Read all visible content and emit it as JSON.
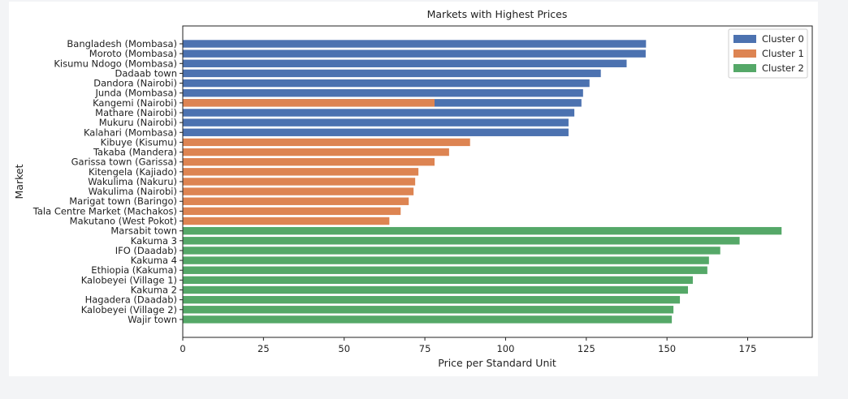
{
  "chart_data": {
    "type": "bar",
    "orientation": "horizontal",
    "title": "Markets with Highest Prices",
    "xlabel": "Price per Standard Unit",
    "ylabel": "Market",
    "xlim": [
      0,
      195
    ],
    "xticks": [
      0,
      25,
      50,
      75,
      100,
      125,
      150,
      175
    ],
    "grid": false,
    "legend_position": "top-right",
    "legend": [
      {
        "name": "Cluster 0",
        "color": "#4c72b0"
      },
      {
        "name": "Cluster 1",
        "color": "#dd8452"
      },
      {
        "name": "Cluster 2",
        "color": "#55a868"
      }
    ],
    "bars": [
      {
        "label": "Bangladesh (Mombasa)",
        "value": 143.5,
        "cluster": 0
      },
      {
        "label": "Moroto (Mombasa)",
        "value": 143.4,
        "cluster": 0
      },
      {
        "label": "Kisumu Ndogo (Mombasa)",
        "value": 137.5,
        "cluster": 0
      },
      {
        "label": "Dadaab town",
        "value": 129.5,
        "cluster": 0
      },
      {
        "label": "Dandora (Nairobi)",
        "value": 126.0,
        "cluster": 0
      },
      {
        "label": "Junda (Mombasa)",
        "value": 124.0,
        "cluster": 0
      },
      {
        "label": "Kangemi (Nairobi)",
        "value": 123.5,
        "cluster": 0
      },
      {
        "label": "Kangemi (Nairobi)",
        "value": 78.0,
        "cluster": 1
      },
      {
        "label": "Mathare (Nairobi)",
        "value": 121.3,
        "cluster": 0
      },
      {
        "label": "Mukuru (Nairobi)",
        "value": 119.5,
        "cluster": 0
      },
      {
        "label": "Kalahari (Mombasa)",
        "value": 119.5,
        "cluster": 0
      },
      {
        "label": "Kibuye (Kisumu)",
        "value": 89.0,
        "cluster": 1
      },
      {
        "label": "Takaba (Mandera)",
        "value": 82.5,
        "cluster": 1
      },
      {
        "label": "Garissa town (Garissa)",
        "value": 78.0,
        "cluster": 1
      },
      {
        "label": "Kitengela (Kajiado)",
        "value": 73.0,
        "cluster": 1
      },
      {
        "label": "Wakulima (Nakuru)",
        "value": 72.0,
        "cluster": 1
      },
      {
        "label": "Wakulima (Nairobi)",
        "value": 71.5,
        "cluster": 1
      },
      {
        "label": "Marigat town (Baringo)",
        "value": 70.0,
        "cluster": 1
      },
      {
        "label": "Tala Centre Market (Machakos)",
        "value": 67.5,
        "cluster": 1
      },
      {
        "label": "Makutano (West Pokot)",
        "value": 64.0,
        "cluster": 1
      },
      {
        "label": "Marsabit town",
        "value": 185.5,
        "cluster": 2
      },
      {
        "label": "Kakuma 3",
        "value": 172.5,
        "cluster": 2
      },
      {
        "label": "IFO (Daadab)",
        "value": 166.5,
        "cluster": 2
      },
      {
        "label": "Kakuma 4",
        "value": 163.0,
        "cluster": 2
      },
      {
        "label": "Ethiopia (Kakuma)",
        "value": 162.5,
        "cluster": 2
      },
      {
        "label": "Kalobeyei (Village 1)",
        "value": 158.0,
        "cluster": 2
      },
      {
        "label": "Kakuma 2",
        "value": 156.5,
        "cluster": 2
      },
      {
        "label": "Hagadera (Daadab)",
        "value": 154.0,
        "cluster": 2
      },
      {
        "label": "Kalobeyei (Village 2)",
        "value": 152.0,
        "cluster": 2
      },
      {
        "label": "Wajir town",
        "value": 151.5,
        "cluster": 2
      }
    ]
  }
}
